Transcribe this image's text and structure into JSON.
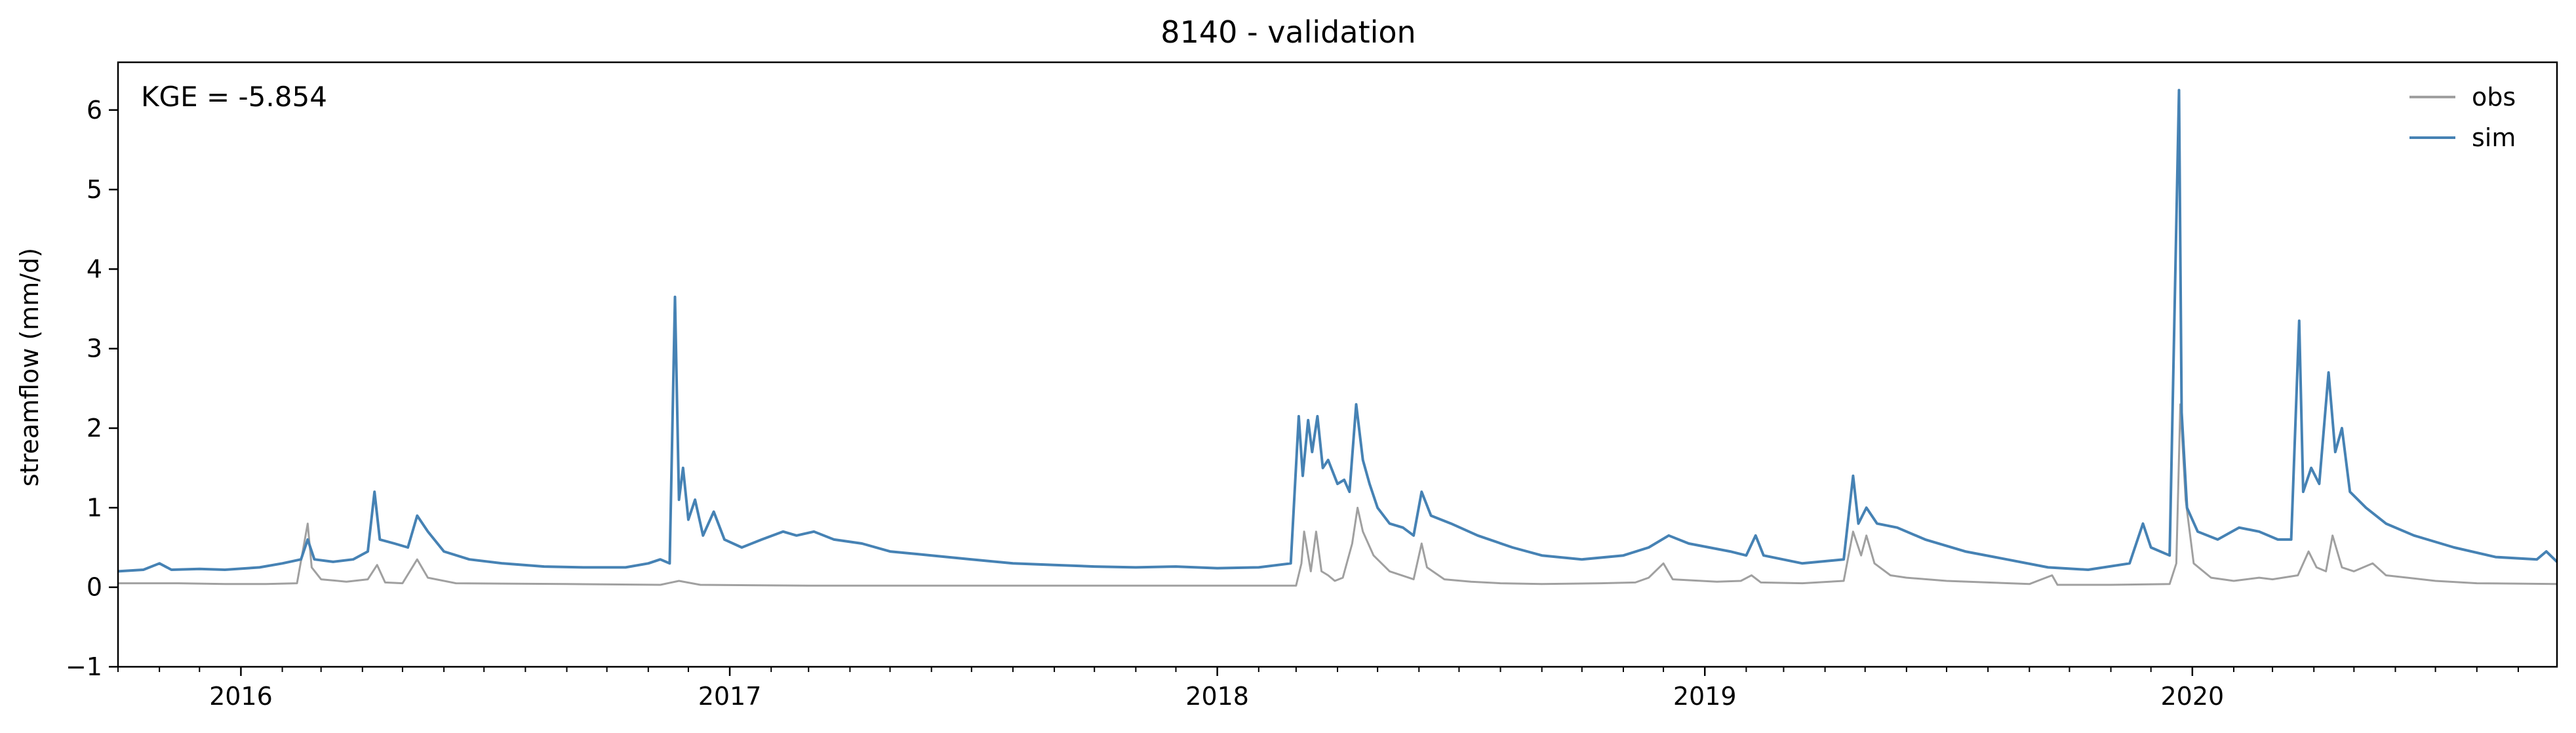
{
  "chart_data": {
    "type": "line",
    "title": "8140 - validation",
    "xlabel": "",
    "ylabel": "streamflow (mm/d)",
    "annotation": "KGE = -5.854",
    "x_axis_type": "date",
    "xlim": [
      "2015-10-01",
      "2020-09-30"
    ],
    "ylim": [
      -1,
      6.6
    ],
    "y_ticks": [
      -1,
      0,
      1,
      2,
      3,
      4,
      5,
      6
    ],
    "x_major_ticks": [
      "2016-01-01",
      "2017-01-01",
      "2018-01-01",
      "2019-01-01",
      "2020-01-01"
    ],
    "x_tick_labels": [
      "2016",
      "2017",
      "2018",
      "2019",
      "2020"
    ],
    "grid": false,
    "legend_position": "top-right",
    "series": [
      {
        "name": "obs",
        "color": "#a0a0a0",
        "points": [
          [
            "2015-10-01",
            0.05
          ],
          [
            "2015-11-15",
            0.05
          ],
          [
            "2015-12-20",
            0.04
          ],
          [
            "2016-01-20",
            0.04
          ],
          [
            "2016-02-12",
            0.05
          ],
          [
            "2016-02-20",
            0.8
          ],
          [
            "2016-02-23",
            0.25
          ],
          [
            "2016-03-01",
            0.1
          ],
          [
            "2016-03-20",
            0.07
          ],
          [
            "2016-04-05",
            0.1
          ],
          [
            "2016-04-12",
            0.28
          ],
          [
            "2016-04-18",
            0.06
          ],
          [
            "2016-05-01",
            0.05
          ],
          [
            "2016-05-12",
            0.35
          ],
          [
            "2016-05-20",
            0.12
          ],
          [
            "2016-06-10",
            0.05
          ],
          [
            "2016-09-01",
            0.04
          ],
          [
            "2016-11-10",
            0.03
          ],
          [
            "2016-11-24",
            0.08
          ],
          [
            "2016-12-10",
            0.03
          ],
          [
            "2017-03-01",
            0.02
          ],
          [
            "2017-06-01",
            0.02
          ],
          [
            "2017-10-01",
            0.02
          ],
          [
            "2018-01-01",
            0.02
          ],
          [
            "2018-03-01",
            0.02
          ],
          [
            "2018-03-05",
            0.3
          ],
          [
            "2018-03-07",
            0.7
          ],
          [
            "2018-03-12",
            0.2
          ],
          [
            "2018-03-16",
            0.7
          ],
          [
            "2018-03-20",
            0.2
          ],
          [
            "2018-03-25",
            0.15
          ],
          [
            "2018-03-30",
            0.08
          ],
          [
            "2018-04-05",
            0.12
          ],
          [
            "2018-04-12",
            0.55
          ],
          [
            "2018-04-16",
            1.0
          ],
          [
            "2018-04-20",
            0.7
          ],
          [
            "2018-04-28",
            0.4
          ],
          [
            "2018-05-10",
            0.2
          ],
          [
            "2018-05-28",
            0.1
          ],
          [
            "2018-06-03",
            0.55
          ],
          [
            "2018-06-07",
            0.25
          ],
          [
            "2018-06-20",
            0.1
          ],
          [
            "2018-07-10",
            0.07
          ],
          [
            "2018-08-01",
            0.05
          ],
          [
            "2018-09-01",
            0.04
          ],
          [
            "2018-10-15",
            0.05
          ],
          [
            "2018-11-10",
            0.06
          ],
          [
            "2018-11-20",
            0.12
          ],
          [
            "2018-12-01",
            0.3
          ],
          [
            "2018-12-08",
            0.1
          ],
          [
            "2019-01-10",
            0.07
          ],
          [
            "2019-01-28",
            0.08
          ],
          [
            "2019-02-05",
            0.15
          ],
          [
            "2019-02-12",
            0.06
          ],
          [
            "2019-03-15",
            0.05
          ],
          [
            "2019-04-15",
            0.08
          ],
          [
            "2019-04-22",
            0.7
          ],
          [
            "2019-04-28",
            0.4
          ],
          [
            "2019-05-02",
            0.65
          ],
          [
            "2019-05-08",
            0.3
          ],
          [
            "2019-05-20",
            0.15
          ],
          [
            "2019-06-01",
            0.12
          ],
          [
            "2019-07-01",
            0.08
          ],
          [
            "2019-08-01",
            0.06
          ],
          [
            "2019-09-01",
            0.04
          ],
          [
            "2019-09-18",
            0.15
          ],
          [
            "2019-09-22",
            0.03
          ],
          [
            "2019-11-01",
            0.03
          ],
          [
            "2019-12-15",
            0.04
          ],
          [
            "2019-12-20",
            0.3
          ],
          [
            "2019-12-23",
            2.3
          ],
          [
            "2019-12-27",
            1.1
          ],
          [
            "2020-01-02",
            0.3
          ],
          [
            "2020-01-15",
            0.12
          ],
          [
            "2020-02-01",
            0.08
          ],
          [
            "2020-02-20",
            0.12
          ],
          [
            "2020-03-01",
            0.1
          ],
          [
            "2020-03-20",
            0.15
          ],
          [
            "2020-03-28",
            0.45
          ],
          [
            "2020-04-03",
            0.25
          ],
          [
            "2020-04-10",
            0.2
          ],
          [
            "2020-04-15",
            0.65
          ],
          [
            "2020-04-22",
            0.25
          ],
          [
            "2020-05-01",
            0.2
          ],
          [
            "2020-05-15",
            0.3
          ],
          [
            "2020-05-25",
            0.15
          ],
          [
            "2020-06-10",
            0.12
          ],
          [
            "2020-07-01",
            0.08
          ],
          [
            "2020-08-01",
            0.05
          ],
          [
            "2020-09-30",
            0.04
          ]
        ]
      },
      {
        "name": "sim",
        "color": "#4682b4",
        "points": [
          [
            "2015-10-01",
            0.2
          ],
          [
            "2015-10-20",
            0.22
          ],
          [
            "2015-11-01",
            0.3
          ],
          [
            "2015-11-10",
            0.22
          ],
          [
            "2015-12-01",
            0.23
          ],
          [
            "2015-12-20",
            0.22
          ],
          [
            "2016-01-15",
            0.25
          ],
          [
            "2016-02-01",
            0.3
          ],
          [
            "2016-02-15",
            0.35
          ],
          [
            "2016-02-20",
            0.6
          ],
          [
            "2016-02-25",
            0.35
          ],
          [
            "2016-03-10",
            0.32
          ],
          [
            "2016-03-25",
            0.35
          ],
          [
            "2016-04-05",
            0.45
          ],
          [
            "2016-04-10",
            1.2
          ],
          [
            "2016-04-14",
            0.6
          ],
          [
            "2016-04-25",
            0.55
          ],
          [
            "2016-05-05",
            0.5
          ],
          [
            "2016-05-12",
            0.9
          ],
          [
            "2016-05-20",
            0.7
          ],
          [
            "2016-06-01",
            0.45
          ],
          [
            "2016-06-20",
            0.35
          ],
          [
            "2016-07-15",
            0.3
          ],
          [
            "2016-08-15",
            0.26
          ],
          [
            "2016-09-15",
            0.25
          ],
          [
            "2016-10-15",
            0.25
          ],
          [
            "2016-11-01",
            0.3
          ],
          [
            "2016-11-10",
            0.35
          ],
          [
            "2016-11-17",
            0.3
          ],
          [
            "2016-11-21",
            3.65
          ],
          [
            "2016-11-24",
            1.1
          ],
          [
            "2016-11-27",
            1.5
          ],
          [
            "2016-12-01",
            0.85
          ],
          [
            "2016-12-06",
            1.1
          ],
          [
            "2016-12-12",
            0.65
          ],
          [
            "2016-12-20",
            0.95
          ],
          [
            "2016-12-28",
            0.6
          ],
          [
            "2017-01-10",
            0.5
          ],
          [
            "2017-01-25",
            0.6
          ],
          [
            "2017-02-10",
            0.7
          ],
          [
            "2017-02-20",
            0.65
          ],
          [
            "2017-03-05",
            0.7
          ],
          [
            "2017-03-20",
            0.6
          ],
          [
            "2017-04-10",
            0.55
          ],
          [
            "2017-05-01",
            0.45
          ],
          [
            "2017-06-01",
            0.4
          ],
          [
            "2017-07-01",
            0.35
          ],
          [
            "2017-08-01",
            0.3
          ],
          [
            "2017-09-01",
            0.28
          ],
          [
            "2017-10-01",
            0.26
          ],
          [
            "2017-11-01",
            0.25
          ],
          [
            "2017-12-01",
            0.26
          ],
          [
            "2018-01-01",
            0.24
          ],
          [
            "2018-02-01",
            0.25
          ],
          [
            "2018-02-25",
            0.3
          ],
          [
            "2018-03-03",
            2.15
          ],
          [
            "2018-03-06",
            1.4
          ],
          [
            "2018-03-10",
            2.1
          ],
          [
            "2018-03-13",
            1.7
          ],
          [
            "2018-03-17",
            2.15
          ],
          [
            "2018-03-21",
            1.5
          ],
          [
            "2018-03-25",
            1.6
          ],
          [
            "2018-04-01",
            1.3
          ],
          [
            "2018-04-06",
            1.35
          ],
          [
            "2018-04-10",
            1.2
          ],
          [
            "2018-04-15",
            2.3
          ],
          [
            "2018-04-20",
            1.6
          ],
          [
            "2018-04-25",
            1.3
          ],
          [
            "2018-05-01",
            1.0
          ],
          [
            "2018-05-10",
            0.8
          ],
          [
            "2018-05-20",
            0.75
          ],
          [
            "2018-05-28",
            0.65
          ],
          [
            "2018-06-03",
            1.2
          ],
          [
            "2018-06-10",
            0.9
          ],
          [
            "2018-06-25",
            0.8
          ],
          [
            "2018-07-15",
            0.65
          ],
          [
            "2018-08-10",
            0.5
          ],
          [
            "2018-09-01",
            0.4
          ],
          [
            "2018-10-01",
            0.35
          ],
          [
            "2018-11-01",
            0.4
          ],
          [
            "2018-11-20",
            0.5
          ],
          [
            "2018-12-05",
            0.65
          ],
          [
            "2018-12-20",
            0.55
          ],
          [
            "2019-01-20",
            0.45
          ],
          [
            "2019-02-01",
            0.4
          ],
          [
            "2019-02-08",
            0.65
          ],
          [
            "2019-02-14",
            0.4
          ],
          [
            "2019-03-15",
            0.3
          ],
          [
            "2019-04-15",
            0.35
          ],
          [
            "2019-04-22",
            1.4
          ],
          [
            "2019-04-26",
            0.8
          ],
          [
            "2019-05-02",
            1.0
          ],
          [
            "2019-05-10",
            0.8
          ],
          [
            "2019-05-25",
            0.75
          ],
          [
            "2019-06-15",
            0.6
          ],
          [
            "2019-07-15",
            0.45
          ],
          [
            "2019-08-15",
            0.35
          ],
          [
            "2019-09-15",
            0.25
          ],
          [
            "2019-10-15",
            0.22
          ],
          [
            "2019-11-15",
            0.3
          ],
          [
            "2019-11-25",
            0.8
          ],
          [
            "2019-12-01",
            0.5
          ],
          [
            "2019-12-15",
            0.4
          ],
          [
            "2019-12-22",
            6.25
          ],
          [
            "2019-12-24",
            2.2
          ],
          [
            "2019-12-28",
            1.0
          ],
          [
            "2020-01-05",
            0.7
          ],
          [
            "2020-01-20",
            0.6
          ],
          [
            "2020-02-05",
            0.75
          ],
          [
            "2020-02-20",
            0.7
          ],
          [
            "2020-03-05",
            0.6
          ],
          [
            "2020-03-15",
            0.6
          ],
          [
            "2020-03-21",
            3.35
          ],
          [
            "2020-03-24",
            1.2
          ],
          [
            "2020-03-30",
            1.5
          ],
          [
            "2020-04-05",
            1.3
          ],
          [
            "2020-04-12",
            2.7
          ],
          [
            "2020-04-17",
            1.7
          ],
          [
            "2020-04-22",
            2.0
          ],
          [
            "2020-04-28",
            1.2
          ],
          [
            "2020-05-10",
            1.0
          ],
          [
            "2020-05-25",
            0.8
          ],
          [
            "2020-06-15",
            0.65
          ],
          [
            "2020-07-15",
            0.5
          ],
          [
            "2020-08-15",
            0.38
          ],
          [
            "2020-09-15",
            0.35
          ],
          [
            "2020-09-22",
            0.45
          ],
          [
            "2020-09-30",
            0.32
          ]
        ]
      }
    ]
  }
}
